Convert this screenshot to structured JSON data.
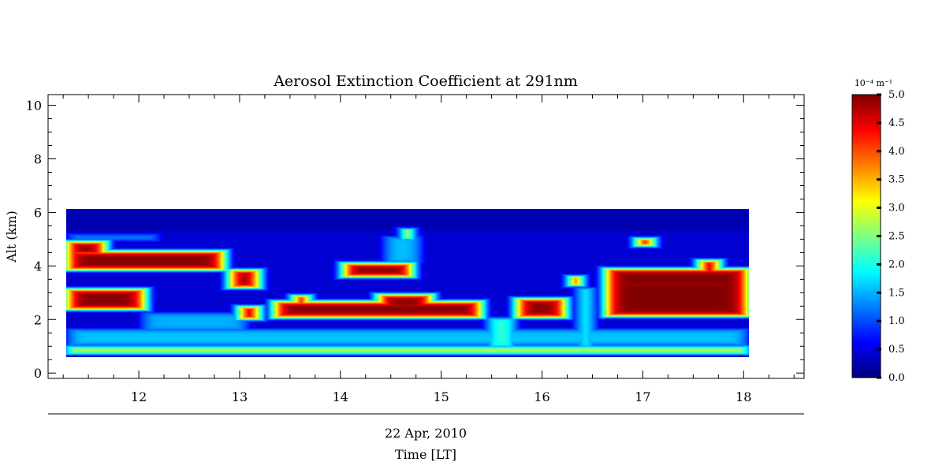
{
  "chart_data": {
    "type": "heatmap",
    "title": "Aerosol Extinction Coefficient at 291nm",
    "ylabel": "Alt (km)",
    "xlabel": "Time [LT]",
    "date_label": "22 Apr, 2010",
    "xlim": [
      11.1,
      18.6
    ],
    "ylim": [
      -0.2,
      10.4
    ],
    "x_ticks": [
      12,
      13,
      14,
      15,
      16,
      17,
      18
    ],
    "y_ticks": [
      0,
      2,
      4,
      6,
      8,
      10
    ],
    "data_extent": {
      "x": [
        11.15,
        18.05
      ],
      "y": [
        0.55,
        6.0
      ]
    },
    "colorbar": {
      "unit_label": "10⁻⁴ m⁻¹",
      "range": [
        0.0,
        5.0
      ],
      "ticks": [
        "5.0",
        "4.5",
        "4.0",
        "3.5",
        "3.0",
        "2.5",
        "2.0",
        "1.5",
        "1.0",
        "0.5",
        "0.0"
      ],
      "colormap": "jet"
    },
    "background_level": 0.25,
    "layers": [
      {
        "x0": 11.15,
        "x1": 12.75,
        "y0": 3.75,
        "y1": 4.45,
        "value": 5.0
      },
      {
        "x0": 11.15,
        "x1": 11.55,
        "y0": 4.3,
        "y1": 4.8,
        "value": 5.0
      },
      {
        "x0": 12.8,
        "x1": 13.1,
        "y0": 3.1,
        "y1": 3.75,
        "value": 5.0
      },
      {
        "x0": 11.15,
        "x1": 11.95,
        "y0": 2.3,
        "y1": 3.05,
        "value": 5.0
      },
      {
        "x0": 12.9,
        "x1": 13.1,
        "y0": 1.95,
        "y1": 2.4,
        "value": 5.0
      },
      {
        "x0": 13.25,
        "x1": 15.35,
        "y0": 2.0,
        "y1": 2.6,
        "value": 5.0
      },
      {
        "x0": 13.45,
        "x1": 13.6,
        "y0": 2.45,
        "y1": 2.8,
        "value": 5.0
      },
      {
        "x0": 14.3,
        "x1": 14.85,
        "y0": 2.3,
        "y1": 2.85,
        "value": 5.0
      },
      {
        "x0": 13.95,
        "x1": 14.65,
        "y0": 3.5,
        "y1": 4.0,
        "value": 5.0
      },
      {
        "x0": 14.55,
        "x1": 14.65,
        "y0": 4.9,
        "y1": 5.25,
        "value": 3.6
      },
      {
        "x0": 15.7,
        "x1": 16.2,
        "y0": 2.0,
        "y1": 2.7,
        "value": 5.0
      },
      {
        "x0": 16.6,
        "x1": 18.05,
        "y0": 2.05,
        "y1": 3.4,
        "value": 5.0
      },
      {
        "x0": 16.6,
        "x1": 18.05,
        "y0": 3.0,
        "y1": 3.8,
        "value": 5.0
      },
      {
        "x0": 17.55,
        "x1": 17.75,
        "y0": 3.6,
        "y1": 4.1,
        "value": 5.0
      },
      {
        "x0": 16.92,
        "x1": 17.08,
        "y0": 4.65,
        "y1": 4.9,
        "value": 5.0
      },
      {
        "x0": 16.25,
        "x1": 16.35,
        "y0": 3.2,
        "y1": 3.5,
        "value": 5.0
      },
      {
        "x0": 11.15,
        "x1": 18.05,
        "y0": 0.65,
        "y1": 0.95,
        "value": 2.9
      },
      {
        "x0": 11.15,
        "x1": 18.05,
        "y0": 0.95,
        "y1": 1.6,
        "value": 1.6
      },
      {
        "x0": 11.9,
        "x1": 13.0,
        "y0": 1.5,
        "y1": 2.2,
        "value": 1.5
      },
      {
        "x0": 15.4,
        "x1": 15.7,
        "y0": 0.9,
        "y1": 2.0,
        "value": 2.2
      },
      {
        "x0": 16.3,
        "x1": 16.5,
        "y0": 0.9,
        "y1": 3.1,
        "value": 2.0
      },
      {
        "x0": 14.35,
        "x1": 14.75,
        "y0": 4.0,
        "y1": 5.0,
        "value": 1.6
      },
      {
        "x0": 11.15,
        "x1": 12.1,
        "y0": 4.8,
        "y1": 5.1,
        "value": 1.3
      }
    ]
  }
}
